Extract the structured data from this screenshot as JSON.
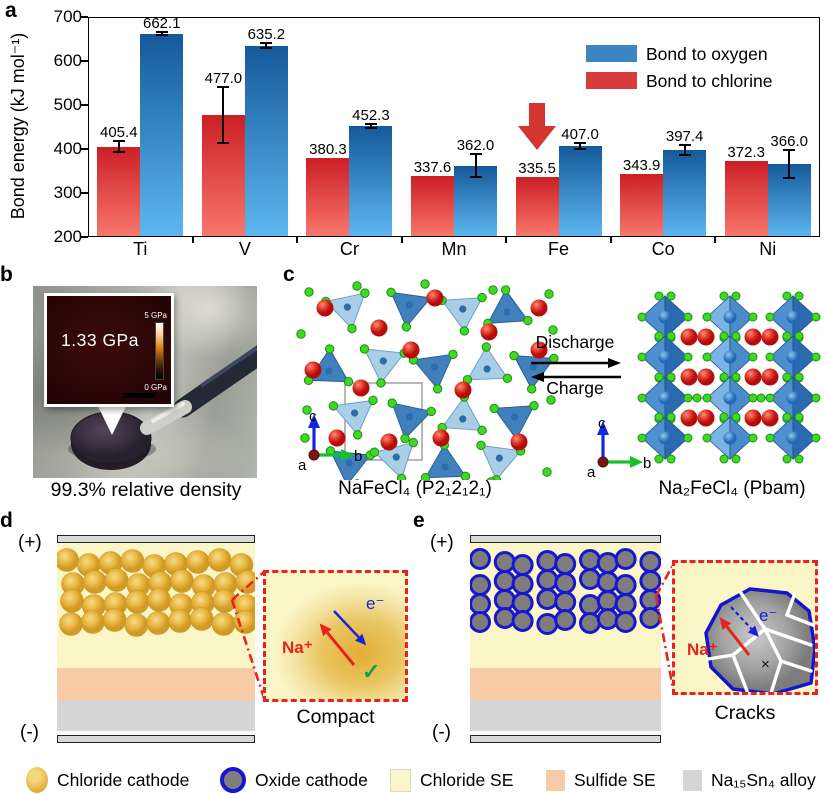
{
  "panel_labels": {
    "a": "a",
    "b": "b",
    "c": "c",
    "d": "d",
    "e": "e"
  },
  "chart_data": {
    "type": "bar",
    "title": "",
    "ylabel": "Bond energy (kJ mol⁻¹)",
    "xlabel": "",
    "categories": [
      "Ti",
      "V",
      "Cr",
      "Mn",
      "Fe",
      "Co",
      "Ni"
    ],
    "series": [
      {
        "name": "Bond to chlorine",
        "values": [
          405.4,
          477.0,
          380.3,
          337.6,
          335.5,
          343.9,
          372.3
        ],
        "errors": [
          12,
          63,
          0,
          0,
          0,
          0,
          0
        ],
        "color_top": "#cb1f25",
        "color_bottom": "#f9776c",
        "legend_color": "#d83b3c"
      },
      {
        "name": "Bond to oxygen",
        "values": [
          662.1,
          635.2,
          452.3,
          362.0,
          407.0,
          397.4,
          366.0
        ],
        "errors": [
          4,
          5,
          4,
          26,
          6,
          11,
          31
        ],
        "color_top": "#15599b",
        "color_bottom": "#5eb7f1",
        "legend_color": "#3d86c6"
      }
    ],
    "ylim": [
      200,
      700
    ],
    "yticks": [
      200,
      300,
      400,
      500,
      600,
      700
    ],
    "grid": false,
    "legend_position": "upper right",
    "annotation": {
      "shape": "down-arrow",
      "category": "Fe",
      "series": "Bond to chlorine",
      "color": "#d5352f"
    }
  },
  "panel_b": {
    "inset_value": "1.33 GPa",
    "colorbar_top": "5 GPa",
    "colorbar_bottom": "0 GPa",
    "caption": "99.3% relative density"
  },
  "panel_c": {
    "discharge": "Discharge",
    "charge": "Charge",
    "left_caption": "NaFeCl₄ (P2₁2₁2₁)",
    "right_caption": "Na₂FeCl₄ (Pbam)",
    "axes": {
      "a": "a",
      "b": "b",
      "c": "c"
    }
  },
  "panel_d": {
    "plus": "(+)",
    "minus": "(-)",
    "na": "Na⁺",
    "electron": "e⁻",
    "check": "✓",
    "caption": "Compact"
  },
  "panel_e": {
    "plus": "(+)",
    "minus": "(-)",
    "na": "Na⁺",
    "electron": "e⁻",
    "cross": "×",
    "caption": "Cracks"
  },
  "bottom_legend": [
    {
      "key": "chloride-cathode",
      "label": "Chloride cathode"
    },
    {
      "key": "oxide-cathode",
      "label": "Oxide cathode"
    },
    {
      "key": "chloride-se",
      "label": "Chloride SE"
    },
    {
      "key": "sulfide-se",
      "label": "Sulfide SE"
    },
    {
      "key": "na15sn4-alloy",
      "label": "Na₁₅Sn₄ alloy"
    }
  ]
}
